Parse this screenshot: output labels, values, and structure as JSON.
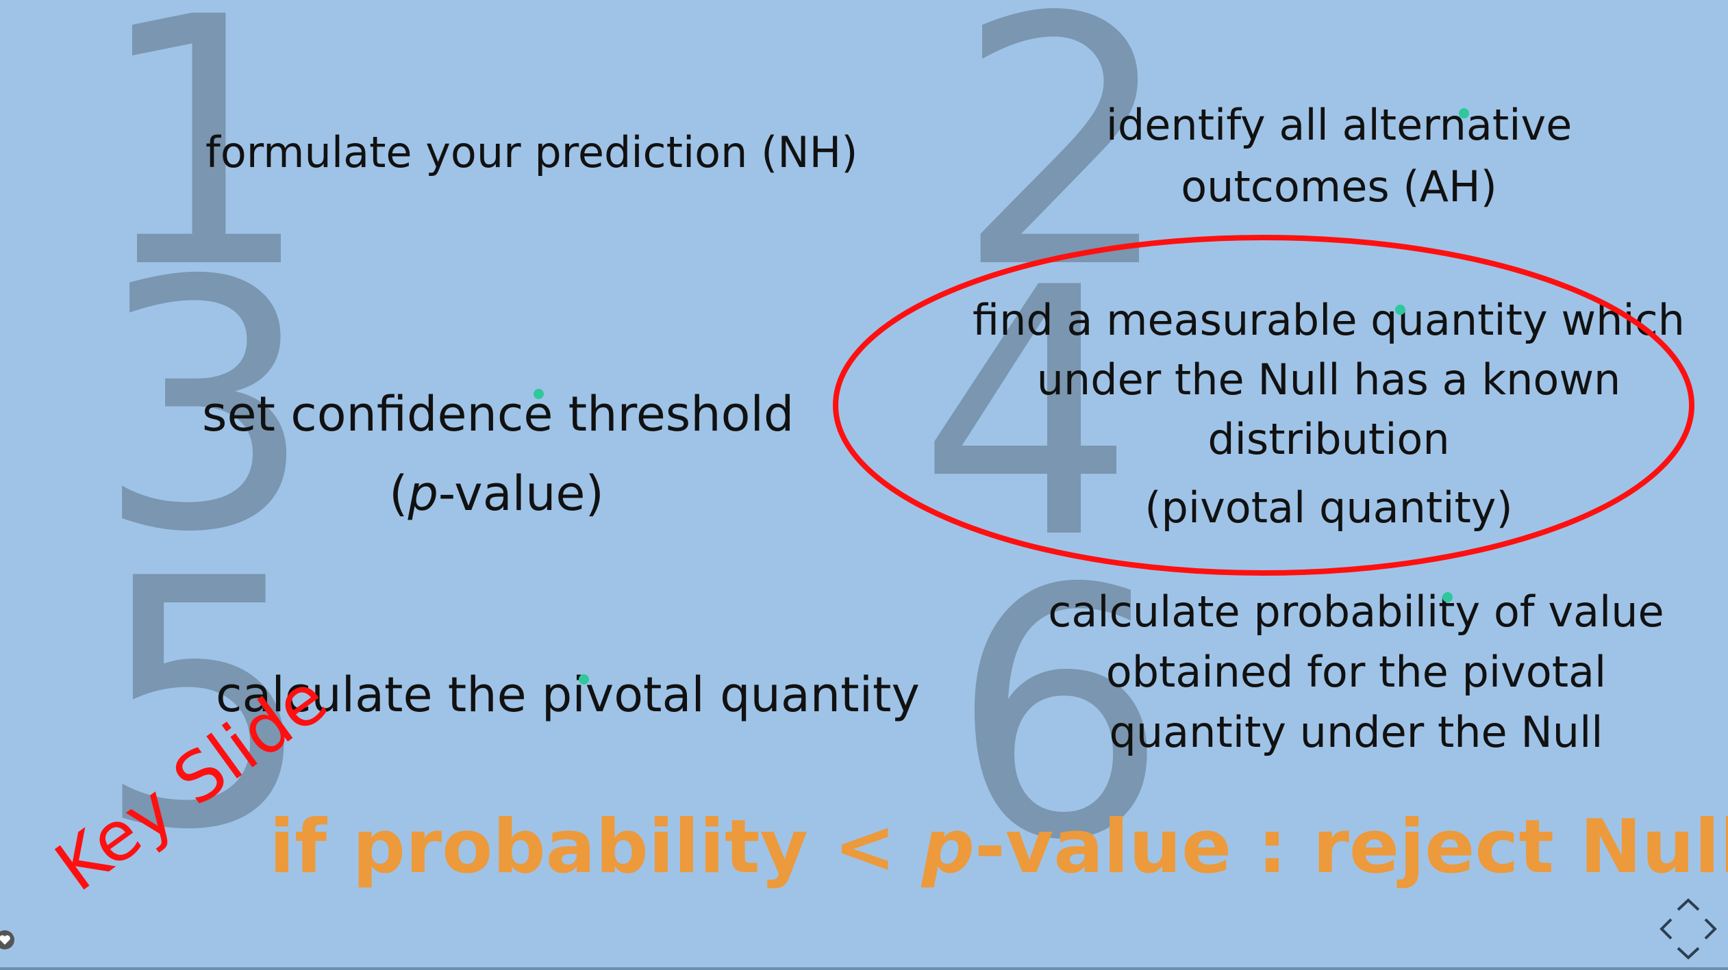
{
  "steps": [
    {
      "number": "1",
      "text": "formulate your prediction (NH)"
    },
    {
      "number": "2",
      "line1": "identify all alternative",
      "line2": "outcomes (AH)"
    },
    {
      "number": "3",
      "line1": "set confidence threshold",
      "line2_pre": "(",
      "line2_italic": "p",
      "line2_post": "-value)"
    },
    {
      "number": "4",
      "line1": "find a measurable quantity which",
      "line2": "under the Null has a known",
      "line3": "distribution",
      "line4": "(pivotal quantity)"
    },
    {
      "number": "5",
      "text": "calculate the pivotal quantity"
    },
    {
      "number": "6",
      "line1": "calculate probability of value",
      "line2": "obtained for the pivotal",
      "line3": "quantity under the Null"
    }
  ],
  "conclusion": {
    "pre": "if probability < ",
    "italic": "p",
    "post": "-value : reject Null"
  },
  "stamp": "Key Slide",
  "colors": {
    "background": "#9fc3e7",
    "numbers": "#7a96b0",
    "conclusion": "#ec9a3c",
    "highlight": "#ff1010",
    "dot": "#2ec89a"
  },
  "icons": {
    "navigation": "diamond-nav-icon",
    "heart": "heart-icon"
  }
}
